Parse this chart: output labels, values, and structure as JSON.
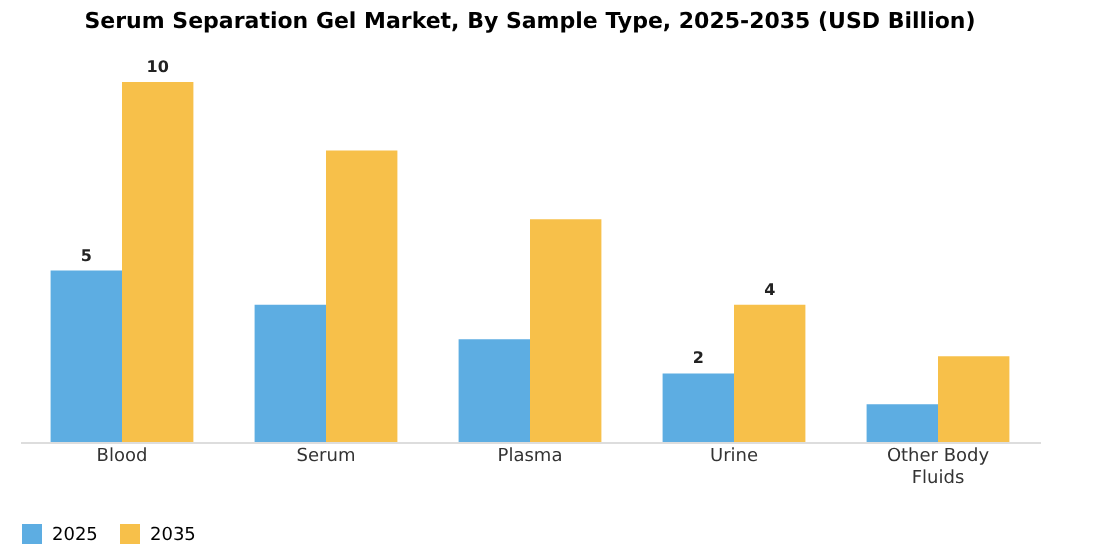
{
  "chart_data": {
    "type": "bar",
    "title": "Serum Separation Gel Market, By Sample Type, 2025-2035 (USD Billion)",
    "categories": [
      "Blood",
      "Serum",
      "Plasma",
      "Urine",
      "Other Body Fluids"
    ],
    "series": [
      {
        "name": "2025",
        "color": "#5dade2",
        "values": [
          5,
          4.0,
          3.0,
          2.0,
          1.1
        ],
        "value_labels": [
          "5",
          null,
          null,
          "2",
          null
        ]
      },
      {
        "name": "2035",
        "color": "#f7c04a",
        "values": [
          10.5,
          8.5,
          6.5,
          4.0,
          2.5
        ],
        "value_labels": [
          "10",
          null,
          null,
          "4",
          null
        ]
      }
    ],
    "legend": "bottom",
    "grid": false
  }
}
